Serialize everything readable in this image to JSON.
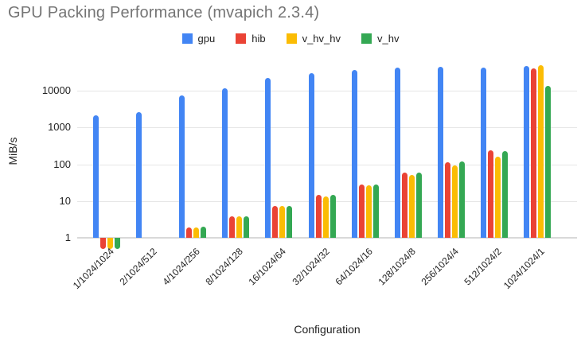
{
  "title": "GPU Packing Performance (mvapich 2.3.4)",
  "legend_position": "top",
  "chart_data": {
    "type": "bar",
    "title": "GPU Packing Performance (mvapich 2.3.4)",
    "xlabel": "Configuration",
    "ylabel": "MiB/s",
    "yscale": "log",
    "grid": true,
    "yticks": [
      1,
      10,
      100,
      1000,
      10000
    ],
    "ylim": [
      0.45,
      55000
    ],
    "categories": [
      "1/1024/1024",
      "2/1024/512",
      "4/1024/256",
      "8/1024/128",
      "16/1024/64",
      "32/1024/32",
      "64/1024/16",
      "128/1024/8",
      "256/1024/4",
      "512/1024/2",
      "1024/1024/1"
    ],
    "series": [
      {
        "name": "gpu",
        "color": "#4285F4",
        "values": [
          2100,
          2600,
          7500,
          11500,
          22000,
          30000,
          36000,
          42000,
          45000,
          42000,
          47000
        ]
      },
      {
        "name": "hib",
        "color": "#EA4335",
        "values": [
          0.5,
          null,
          1.9,
          3.9,
          7.5,
          14.5,
          28,
          59,
          113,
          240,
          40000
        ]
      },
      {
        "name": "v_hv_hv",
        "color": "#FBBC04",
        "values": [
          0.5,
          null,
          1.9,
          3.8,
          7.3,
          13.5,
          27,
          52,
          95,
          160,
          49000
        ]
      },
      {
        "name": "v_hv",
        "color": "#34A853",
        "values": [
          0.5,
          null,
          2.0,
          3.9,
          7.5,
          14.5,
          28,
          59,
          119,
          230,
          13500
        ]
      }
    ]
  }
}
